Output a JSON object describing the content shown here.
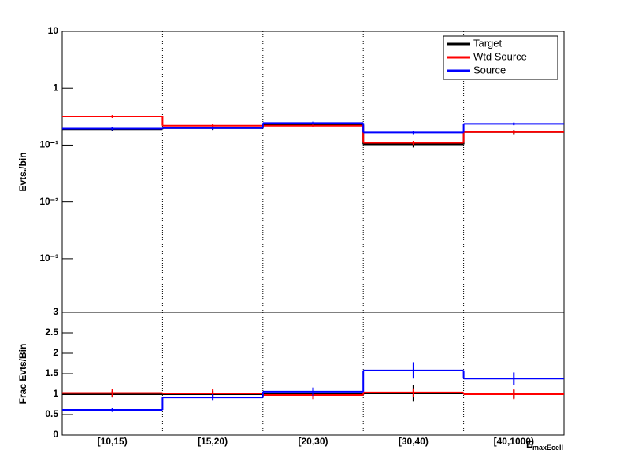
{
  "chart_data": [
    {
      "type": "histogram",
      "y_label": "Evts./bin",
      "log_scale": true,
      "ylim": [
        0.000114,
        10
      ],
      "yticks": [
        {
          "value": 0.001,
          "label": "10⁻³"
        },
        {
          "value": 0.01,
          "label": "10⁻²"
        },
        {
          "value": 0.1,
          "label": "10⁻¹"
        },
        1,
        10
      ],
      "grid_x": true,
      "legend": "upper right",
      "series": [
        {
          "name": "Target",
          "color": "#000000",
          "values": [
            0.19,
            0.2,
            0.23,
            0.103,
            0.17
          ],
          "errors": [
            0.015,
            0.015,
            0.017,
            0.012,
            0.014
          ]
        },
        {
          "name": "Wtd Source",
          "color": "#ff0000",
          "values": [
            0.32,
            0.22,
            0.22,
            0.11,
            0.17
          ],
          "errors": [
            0.02,
            0.015,
            0.015,
            0.009,
            0.012
          ]
        },
        {
          "name": "Source",
          "color": "#0000ff",
          "values": [
            0.195,
            0.2,
            0.245,
            0.167,
            0.237
          ],
          "errors": [
            0.012,
            0.012,
            0.014,
            0.011,
            0.013
          ]
        }
      ]
    },
    {
      "type": "histogram",
      "y_label": "Frac Evts/Bin",
      "log_scale": false,
      "x_label": "E",
      "x_label_subscript": "maxEcell",
      "categories": [
        "[10,15)",
        "[15,20)",
        "[20,30)",
        "[30,40)",
        "[40,1000)"
      ],
      "ylim": [
        0,
        3
      ],
      "yticks": [
        0,
        0.5,
        1,
        1.5,
        2,
        2.5,
        3
      ],
      "grid_x": true,
      "series": [
        {
          "name": "Target",
          "color": "#000000",
          "values": [
            1,
            1,
            1,
            1.02,
            1
          ],
          "errors": [
            0.08,
            0.08,
            0.1,
            0.2,
            0.1
          ]
        },
        {
          "name": "Wtd Source",
          "color": "#ff0000",
          "values": [
            1.03,
            1.02,
            0.98,
            1.04,
            1.0
          ],
          "errors": [
            0.1,
            0.1,
            0.1,
            0.1,
            0.12
          ]
        },
        {
          "name": "Source",
          "color": "#0000ff",
          "values": [
            0.615,
            0.92,
            1.06,
            1.58,
            1.38
          ],
          "errors": [
            0.05,
            0.08,
            0.1,
            0.2,
            0.15
          ]
        }
      ]
    }
  ]
}
